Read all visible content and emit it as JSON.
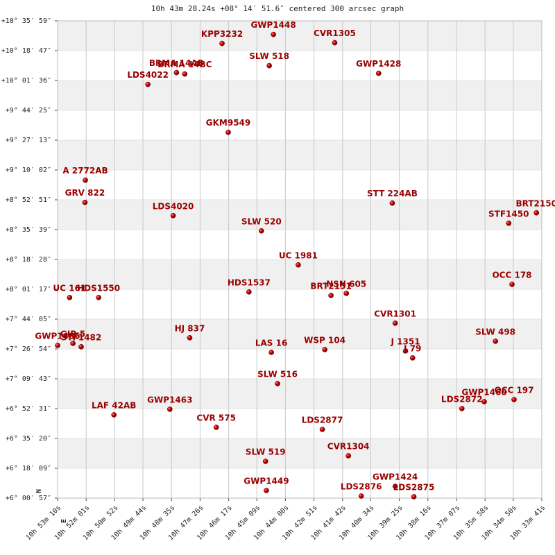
{
  "chart_data": {
    "type": "scatter",
    "title": "10h 43m 28.24s +08° 14′ 51.6″ centered 300 arcsec graph",
    "compass": [
      "N",
      "E"
    ],
    "color": "#cc0000",
    "xlim": [
      3190,
      2021
    ],
    "ylim": [
      21657,
      38159
    ],
    "xticks": [
      {
        "value": 3190,
        "label": "10h 53m 10s"
      },
      {
        "value": 3121,
        "label": "10h 52m 01s"
      },
      {
        "value": 3052,
        "label": "10h 50m 52s"
      },
      {
        "value": 2984,
        "label": "10h 49m 44s"
      },
      {
        "value": 2915,
        "label": "10h 48m 35s"
      },
      {
        "value": 2846,
        "label": "10h 47m 26s"
      },
      {
        "value": 2777,
        "label": "10h 46m 17s"
      },
      {
        "value": 2709,
        "label": "10h 45m 09s"
      },
      {
        "value": 2640,
        "label": "10h 44m 00s"
      },
      {
        "value": 2571,
        "label": "10h 42m 51s"
      },
      {
        "value": 2502,
        "label": "10h 41m 42s"
      },
      {
        "value": 2434,
        "label": "10h 40m 34s"
      },
      {
        "value": 2365,
        "label": "10h 39m 25s"
      },
      {
        "value": 2296,
        "label": "10h 38m 16s"
      },
      {
        "value": 2227,
        "label": "10h 37m 07s"
      },
      {
        "value": 2158,
        "label": "10h 35m 58s"
      },
      {
        "value": 2090,
        "label": "10h 34m 50s"
      },
      {
        "value": 2021,
        "label": "10h 33m 41s"
      }
    ],
    "yticks": [
      {
        "value": 38159,
        "label": "+10° 35′ 59″"
      },
      {
        "value": 37127,
        "label": "+10° 18′ 47″"
      },
      {
        "value": 36096,
        "label": "+10° 01′ 36″"
      },
      {
        "value": 35065,
        "label": "+9° 44′ 25″"
      },
      {
        "value": 34033,
        "label": "+9° 27′ 13″"
      },
      {
        "value": 33002,
        "label": "+9° 10′ 02″"
      },
      {
        "value": 31971,
        "label": "+8° 52′ 51″"
      },
      {
        "value": 30939,
        "label": "+8° 35′ 39″"
      },
      {
        "value": 29908,
        "label": "+8° 18′ 28″"
      },
      {
        "value": 28877,
        "label": "+8° 01′ 17″"
      },
      {
        "value": 27845,
        "label": "+7° 44′ 05″"
      },
      {
        "value": 26814,
        "label": "+7° 26′ 54″"
      },
      {
        "value": 25783,
        "label": "+7° 09′ 43″"
      },
      {
        "value": 24751,
        "label": "+6° 52′ 31″"
      },
      {
        "value": 23720,
        "label": "+6° 35′ 20″"
      },
      {
        "value": 22689,
        "label": "+6° 18′ 09″"
      },
      {
        "value": 21657,
        "label": "+6° 00′ 57″"
      }
    ],
    "point_labels": [
      "KPP3232",
      "GWP1448",
      "CVR1305",
      "SLW 518",
      "GWP1428",
      "BRMA 14AB",
      "BRMA 14BC",
      "LDS4022",
      "GKM9549",
      "A  2772AB",
      "GRV 822",
      "LDS4020",
      "SLW 520",
      "STT 224AB",
      "BRT2150",
      "STF1450",
      "UC 1981",
      "OCC 178",
      "HDS1537",
      "BRT2151",
      "NSN 605",
      "UC  161",
      "HDS1550",
      "CVR1301",
      "HJ  837",
      "SLW 498",
      "GWP1485",
      "GIR  5",
      "STF1482",
      "LAS  16",
      "WSP 104",
      "J  1351",
      "J  79",
      "SLW 516",
      "LAF  42AB",
      "GWP1463",
      "LDS2872",
      "GWP1460",
      "OCC 197",
      "CVR 575",
      "LDS2877",
      "CVR1304",
      "SLW 519",
      "GWP1449",
      "GWP1424",
      "LDS2876",
      "LDS2875"
    ],
    "x": [
      2793,
      2669,
      2521,
      2679,
      2415,
      2903,
      2883,
      2972,
      2778,
      3123,
      3124,
      2911,
      2698,
      2382,
      2034,
      2101,
      2609,
      2093,
      2728,
      2530,
      2493,
      3161,
      3091,
      2375,
      2871,
      2133,
      3190,
      3153,
      3133,
      2674,
      2545,
      2350,
      2333,
      2659,
      3054,
      2919,
      2214,
      2160,
      2088,
      2807,
      2551,
      2488,
      2688,
      2686,
      2375,
      2457,
      2330
    ],
    "values": [
      37377,
      37689,
      37401,
      36609,
      36345,
      36369,
      36321,
      35961,
      34305,
      32649,
      31881,
      31425,
      30897,
      31857,
      31521,
      31161,
      29721,
      29049,
      28785,
      28665,
      28737,
      28593,
      28593,
      27705,
      27201,
      27081,
      26937,
      27009,
      26889,
      26697,
      26793,
      26745,
      26505,
      25617,
      24537,
      24729,
      24753,
      24993,
      25065,
      24105,
      24033,
      23121,
      22929,
      21921,
      22065,
      21729,
      21705
    ]
  }
}
